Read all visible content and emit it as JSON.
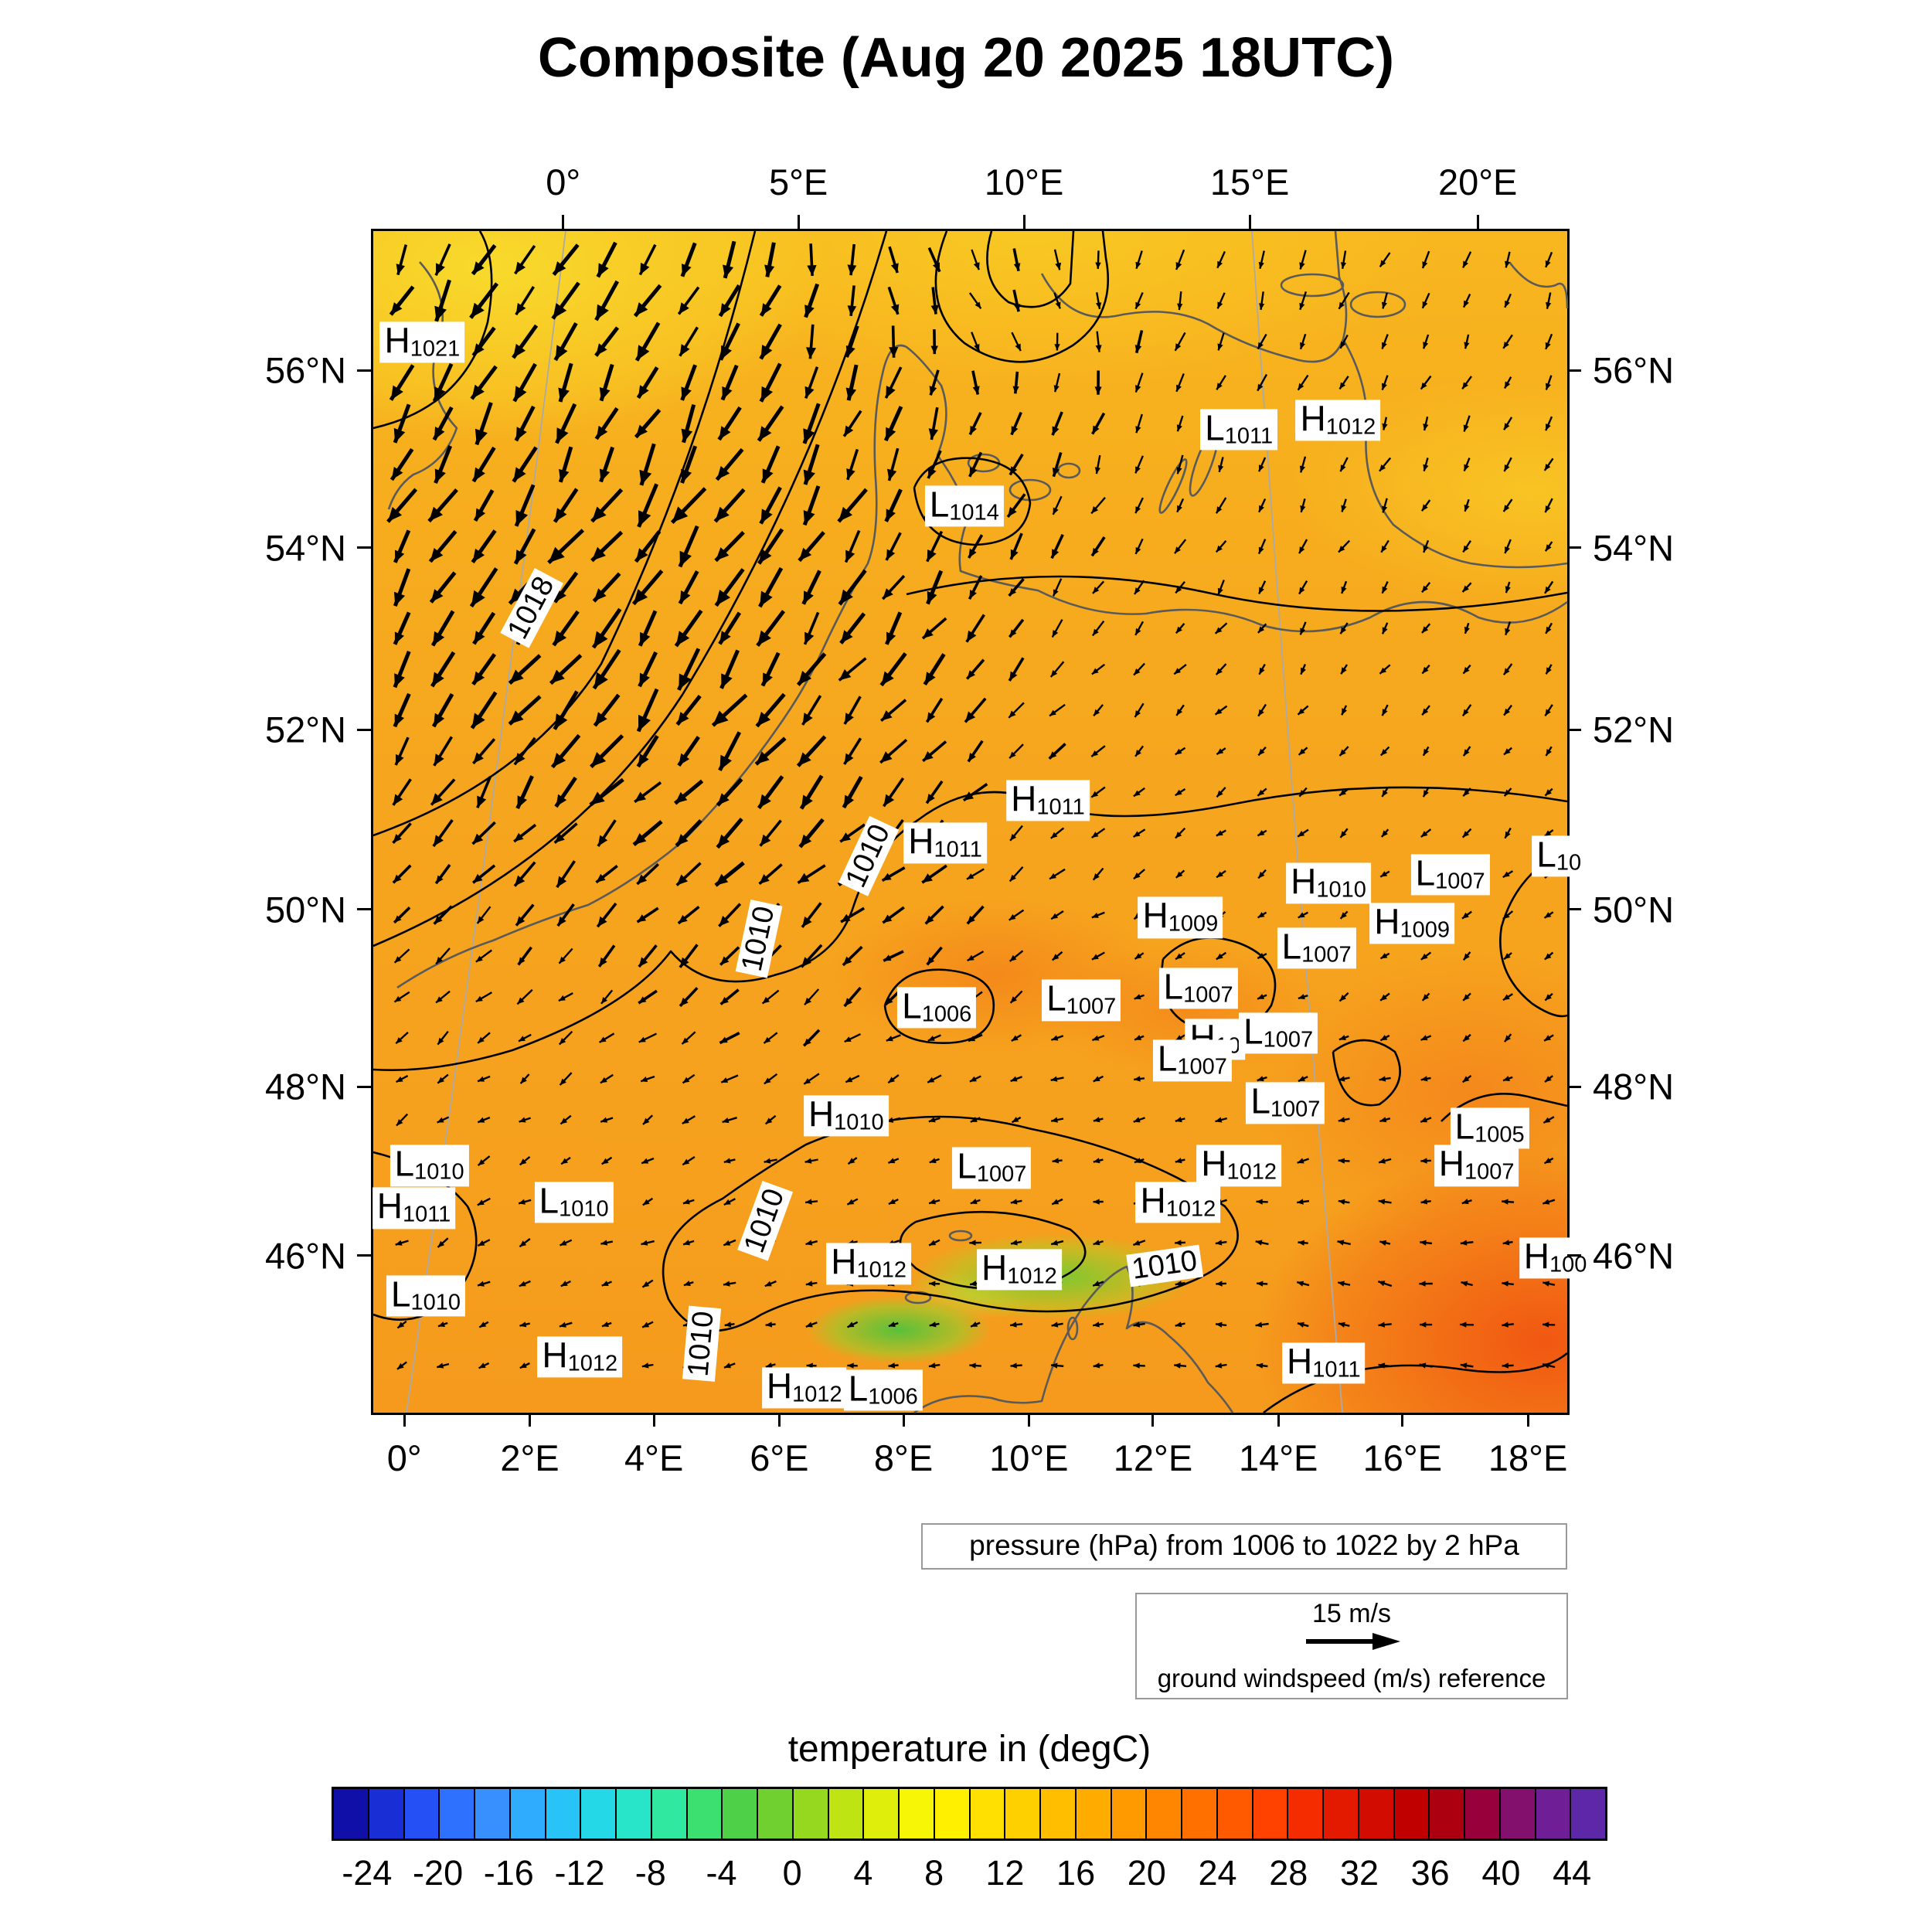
{
  "title": "Composite (Aug 20 2025 18UTC)",
  "pressure_caption": "pressure (hPa) from 1006 to 1022 by 2 hPa",
  "wind_legend": {
    "speed_label": "15 m/s",
    "caption": "ground windspeed (m/s) reference"
  },
  "colorbar": {
    "title": "temperature in (degC)",
    "unit": "degC",
    "tick_labels": [
      "-24",
      "-20",
      "-16",
      "-12",
      "-8",
      "-4",
      "0",
      "4",
      "8",
      "12",
      "16",
      "20",
      "24",
      "28",
      "32",
      "36",
      "40",
      "44"
    ],
    "segment_colors": [
      "#1010a8",
      "#1a2ed6",
      "#2450f5",
      "#2e70ff",
      "#3890ff",
      "#30acff",
      "#28c4f8",
      "#24d8e8",
      "#28e4c8",
      "#30e8a0",
      "#3ce070",
      "#4ed048",
      "#70d030",
      "#96d820",
      "#bee414",
      "#e0ee0c",
      "#f6f606",
      "#fff000",
      "#ffe000",
      "#ffd000",
      "#ffbe00",
      "#ffac00",
      "#ff9a00",
      "#ff8600",
      "#ff7000",
      "#ff5a00",
      "#ff4200",
      "#f52c00",
      "#e41a00",
      "#d20c00",
      "#c00000",
      "#ac0010",
      "#98003c",
      "#84106e",
      "#701e96",
      "#5c28a8"
    ]
  },
  "chart_data": {
    "type": "heatmap",
    "title": "Composite (Aug 20 2025 18UTC)",
    "description": "Weather composite map: shaded 2m temperature (degC), sea-level pressure contours (hPa), ground wind vectors (m/s)",
    "temperature_scale": {
      "min": -26,
      "max": 46,
      "tick_step": 4,
      "unit": "degC"
    },
    "pressure_contours": {
      "min": 1006,
      "max": 1022,
      "step": 2,
      "unit": "hPa"
    },
    "wind_reference_ms": 15,
    "axes": {
      "top": [
        {
          "label": "0°",
          "pct": 16.1
        },
        {
          "label": "5°E",
          "pct": 35.8
        },
        {
          "label": "10°E",
          "pct": 54.7
        },
        {
          "label": "15°E",
          "pct": 73.6
        },
        {
          "label": "20°E",
          "pct": 92.7
        }
      ],
      "bottom": [
        {
          "label": "0°",
          "pct": 2.8
        },
        {
          "label": "2°E",
          "pct": 13.3
        },
        {
          "label": "4°E",
          "pct": 23.7
        },
        {
          "label": "6°E",
          "pct": 34.2
        },
        {
          "label": "8°E",
          "pct": 44.6
        },
        {
          "label": "10°E",
          "pct": 55.1
        },
        {
          "label": "12°E",
          "pct": 65.5
        },
        {
          "label": "14°E",
          "pct": 76.0
        },
        {
          "label": "16°E",
          "pct": 86.4
        },
        {
          "label": "18°E",
          "pct": 96.9
        }
      ],
      "left": [
        {
          "label": "56°N",
          "pct": 12.0
        },
        {
          "label": "54°N",
          "pct": 27.0
        },
        {
          "label": "52°N",
          "pct": 42.4
        },
        {
          "label": "50°N",
          "pct": 57.6
        },
        {
          "label": "48°N",
          "pct": 72.6
        },
        {
          "label": "46°N",
          "pct": 86.9
        }
      ]
    },
    "pressure_centers": [
      {
        "kind": "H",
        "hpa": "1021",
        "x": 4.1,
        "y": 9.4
      },
      {
        "kind": "L",
        "hpa": "1011",
        "x": 72.5,
        "y": 16.8
      },
      {
        "kind": "H",
        "hpa": "1012",
        "x": 80.8,
        "y": 16.0
      },
      {
        "kind": "L",
        "hpa": "1014",
        "x": 49.5,
        "y": 23.3
      },
      {
        "kind": "H",
        "hpa": "1011",
        "x": 56.5,
        "y": 48.2
      },
      {
        "kind": "H",
        "hpa": "1011",
        "x": 47.9,
        "y": 51.8
      },
      {
        "kind": "H",
        "hpa": "1010",
        "x": 80.0,
        "y": 55.2
      },
      {
        "kind": "L",
        "hpa": "1007",
        "x": 90.2,
        "y": 54.5
      },
      {
        "kind": "L",
        "hpa": "10",
        "x": 99.3,
        "y": 52.9
      },
      {
        "kind": "H",
        "hpa": "1009",
        "x": 67.6,
        "y": 58.1
      },
      {
        "kind": "H",
        "hpa": "1009",
        "x": 87.0,
        "y": 58.6
      },
      {
        "kind": "L",
        "hpa": "1007",
        "x": 79.0,
        "y": 60.7
      },
      {
        "kind": "L",
        "hpa": "1007",
        "x": 69.1,
        "y": 64.1
      },
      {
        "kind": "L",
        "hpa": "1006",
        "x": 47.2,
        "y": 65.7
      },
      {
        "kind": "L",
        "hpa": "1007",
        "x": 59.3,
        "y": 65.1
      },
      {
        "kind": "H",
        "hpa": "10",
        "x": 70.5,
        "y": 68.4
      },
      {
        "kind": "L",
        "hpa": "1007",
        "x": 75.8,
        "y": 67.9
      },
      {
        "kind": "L",
        "hpa": "1007",
        "x": 68.6,
        "y": 70.2
      },
      {
        "kind": "L",
        "hpa": "1007",
        "x": 76.4,
        "y": 73.8
      },
      {
        "kind": "H",
        "hpa": "1010",
        "x": 39.6,
        "y": 74.9
      },
      {
        "kind": "L",
        "hpa": "1005",
        "x": 93.5,
        "y": 75.9
      },
      {
        "kind": "H",
        "hpa": "1007",
        "x": 92.4,
        "y": 79.1
      },
      {
        "kind": "L",
        "hpa": "1010",
        "x": 4.7,
        "y": 79.1
      },
      {
        "kind": "L",
        "hpa": "1007",
        "x": 51.8,
        "y": 79.3
      },
      {
        "kind": "H",
        "hpa": "1012",
        "x": 72.5,
        "y": 79.1
      },
      {
        "kind": "H",
        "hpa": "1011",
        "x": 3.4,
        "y": 82.7
      },
      {
        "kind": "L",
        "hpa": "1010",
        "x": 16.8,
        "y": 82.2
      },
      {
        "kind": "H",
        "hpa": "1012",
        "x": 67.4,
        "y": 82.2
      },
      {
        "kind": "H",
        "hpa": "1012",
        "x": 41.5,
        "y": 87.4
      },
      {
        "kind": "H",
        "hpa": "1012",
        "x": 54.1,
        "y": 87.9
      },
      {
        "kind": "L",
        "hpa": "1010",
        "x": 4.4,
        "y": 90.1
      },
      {
        "kind": "H",
        "hpa": "100",
        "x": 99.0,
        "y": 86.9
      },
      {
        "kind": "H",
        "hpa": "1012",
        "x": 17.3,
        "y": 95.3
      },
      {
        "kind": "H",
        "hpa": "1011",
        "x": 79.6,
        "y": 95.8
      },
      {
        "kind": "H",
        "hpa": "1012",
        "x": 36.1,
        "y": 97.9
      },
      {
        "kind": "L",
        "hpa": "1006",
        "x": 42.7,
        "y": 98.1
      }
    ],
    "contour_inline_labels": [
      {
        "text": "1018",
        "x": 13.3,
        "y": 31.9,
        "rot": -62
      },
      {
        "text": "1010",
        "x": 41.5,
        "y": 52.9,
        "rot": -65
      },
      {
        "text": "1010",
        "x": 32.3,
        "y": 59.9,
        "rot": -78
      },
      {
        "text": "1010",
        "x": 32.8,
        "y": 83.8,
        "rot": -70
      },
      {
        "text": "1010",
        "x": 27.5,
        "y": 94.2,
        "rot": -85
      },
      {
        "text": "1010",
        "x": 66.3,
        "y": 87.6,
        "rot": -8
      }
    ],
    "wind_regions": [
      {
        "x": 20,
        "y": 22,
        "s": 24,
        "a": 118,
        "l": 30
      },
      {
        "x": 27,
        "y": 33,
        "s": 14,
        "a": 125,
        "l": 33
      },
      {
        "x": 33,
        "y": 44,
        "s": 13,
        "a": 133,
        "l": 36
      },
      {
        "x": 38,
        "y": 55,
        "s": 10,
        "a": 140,
        "l": 30
      },
      {
        "x": 40,
        "y": 12,
        "s": 12,
        "a": 100,
        "l": 26
      },
      {
        "x": 44,
        "y": 4,
        "s": 5,
        "a": 55,
        "l": 22
      },
      {
        "x": 51,
        "y": 5,
        "s": 6,
        "a": 5,
        "l": 26
      },
      {
        "x": 62,
        "y": 7,
        "s": 8,
        "a": 95,
        "l": 15
      },
      {
        "x": 80,
        "y": 12,
        "s": 16,
        "a": 108,
        "l": 13
      },
      {
        "x": 92,
        "y": 30,
        "s": 13,
        "a": 118,
        "l": 9
      },
      {
        "x": 70,
        "y": 45,
        "s": 20,
        "a": 140,
        "l": 7
      },
      {
        "x": 50,
        "y": 68,
        "s": 20,
        "a": 160,
        "l": 7
      },
      {
        "x": 18,
        "y": 70,
        "s": 15,
        "a": 150,
        "l": 9
      },
      {
        "x": 45,
        "y": 90,
        "s": 22,
        "a": 178,
        "l": 8
      },
      {
        "x": 82,
        "y": 91,
        "s": 14,
        "a": 195,
        "l": 10
      },
      {
        "x": 95,
        "y": 60,
        "s": 12,
        "a": 130,
        "l": 8
      }
    ],
    "wind_base": {
      "a": 140,
      "l": 6
    }
  }
}
